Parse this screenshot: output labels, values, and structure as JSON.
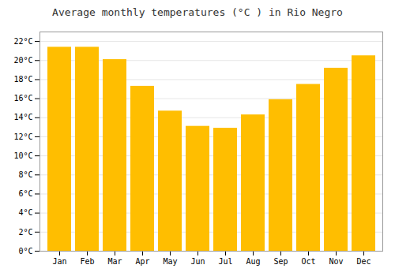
{
  "chart_data": {
    "type": "bar",
    "title": "Average monthly temperatures (°C ) in Rio Negro",
    "categories": [
      "Jan",
      "Feb",
      "Mar",
      "Apr",
      "May",
      "Jun",
      "Jul",
      "Aug",
      "Sep",
      "Oct",
      "Nov",
      "Dec"
    ],
    "values": [
      21.4,
      21.4,
      20.1,
      17.3,
      14.7,
      13.1,
      12.9,
      14.3,
      15.9,
      17.5,
      19.2,
      20.5
    ],
    "color": "#FFBE00",
    "ylim": [
      0,
      23
    ],
    "yticks": [
      {
        "value": 0,
        "label": "0°C"
      },
      {
        "value": 2,
        "label": "2°C"
      },
      {
        "value": 4,
        "label": "4°C"
      },
      {
        "value": 6,
        "label": "6°C"
      },
      {
        "value": 8,
        "label": "8°C"
      },
      {
        "value": 10,
        "label": "10°C"
      },
      {
        "value": 12,
        "label": "12°C"
      },
      {
        "value": 14,
        "label": "14°C"
      },
      {
        "value": 16,
        "label": "16°C"
      },
      {
        "value": 18,
        "label": "18°C"
      },
      {
        "value": 20,
        "label": "20°C"
      },
      {
        "value": 22,
        "label": "22°C"
      }
    ],
    "grid": true
  }
}
